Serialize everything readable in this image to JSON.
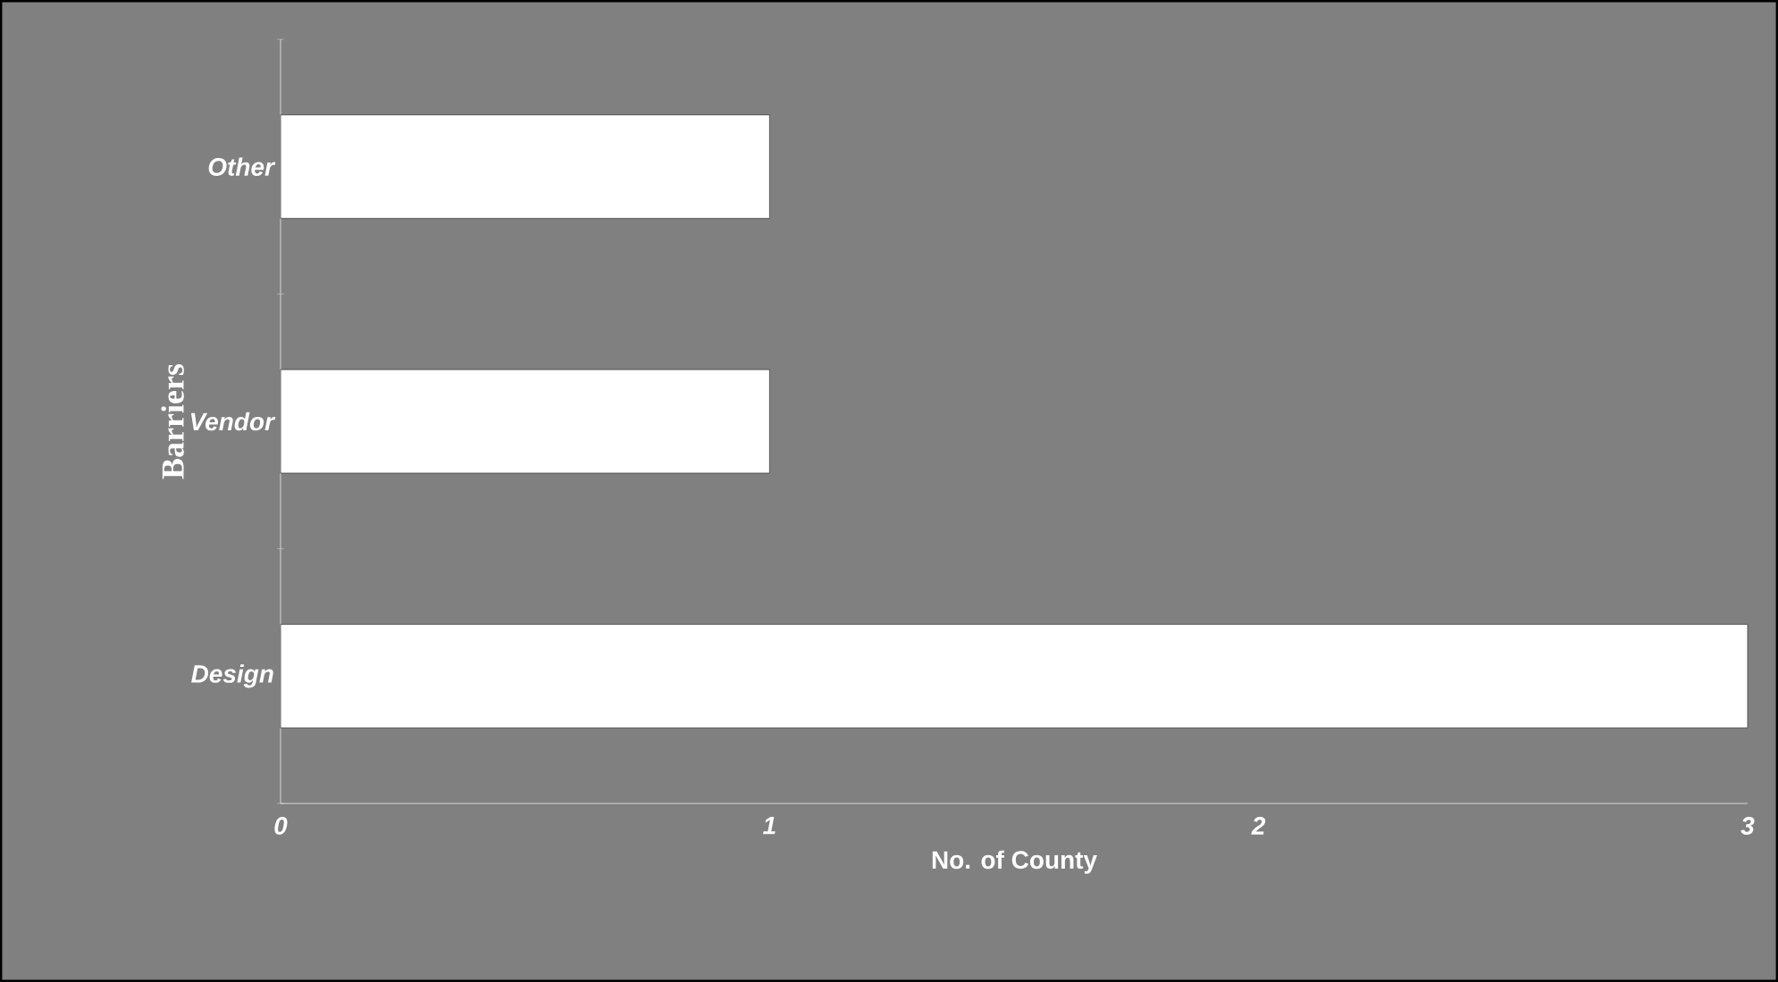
{
  "chart_data": {
    "type": "bar",
    "orientation": "horizontal",
    "xlabel": "No. of County",
    "ylabel": "Barriers",
    "categories": [
      "Other",
      "Vendor",
      "Design"
    ],
    "values": [
      1,
      1,
      3
    ],
    "color": "#ffffff",
    "xlim": [
      0,
      3
    ],
    "xticks": [
      0,
      1,
      2,
      3
    ]
  }
}
